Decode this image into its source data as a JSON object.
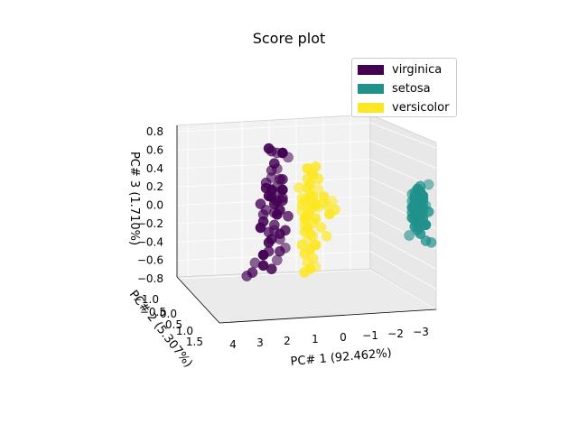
{
  "chart_data": {
    "type": "scatter",
    "projection": "3d",
    "title": "Score plot",
    "xlabel": "PC# 1 (92.462%)",
    "ylabel": "PC# 2 (5.307%)",
    "zlabel": "PC# 3 (1.710%)",
    "xticks": [
      "4",
      "3",
      "2",
      "1",
      "0",
      "−1",
      "−2",
      "−3"
    ],
    "yticks": [
      "−1.0",
      "−0.5",
      "0.0",
      "0.5",
      "1.0",
      "1.5"
    ],
    "zticks": [
      "0.8",
      "0.6",
      "0.4",
      "0.2",
      "0.0",
      "−0.2",
      "−0.4",
      "−0.6",
      "−0.8"
    ],
    "xlim": [
      4.2,
      -3.5
    ],
    "zlim": [
      -0.85,
      0.85
    ],
    "grid": true,
    "legend_position": "top-right",
    "series": [
      {
        "name": "virginica",
        "color": "#440154",
        "points": [
          [
            2.5,
            -0.28
          ],
          [
            2.6,
            0.1
          ],
          [
            2.4,
            0.05
          ],
          [
            2.7,
            -0.52
          ],
          [
            2.5,
            -0.08
          ],
          [
            2.3,
            -0.38
          ],
          [
            2.6,
            0.18
          ],
          [
            2.8,
            0.2
          ],
          [
            2.2,
            0.06
          ],
          [
            2.5,
            -0.22
          ],
          [
            2.3,
            0.16
          ],
          [
            2.1,
            -0.48
          ],
          [
            2.4,
            -0.1
          ],
          [
            2.9,
            -0.18
          ],
          [
            3.0,
            0.02
          ],
          [
            2.6,
            0.62
          ],
          [
            2.4,
            0.6
          ],
          [
            2.2,
            0.6
          ],
          [
            2.7,
            0.65
          ],
          [
            2.5,
            0.48
          ],
          [
            2.3,
            0.3
          ],
          [
            2.6,
            0.4
          ],
          [
            2.4,
            0.42
          ],
          [
            2.2,
            0.18
          ],
          [
            2.3,
            -0.05
          ],
          [
            2.1,
            -0.28
          ],
          [
            2.7,
            -0.3
          ],
          [
            2.8,
            -0.05
          ],
          [
            2.4,
            -0.62
          ],
          [
            2.9,
            -0.68
          ],
          [
            2.6,
            -0.72
          ],
          [
            3.3,
            -0.76
          ],
          [
            3.5,
            -0.8
          ],
          [
            3.2,
            -0.65
          ],
          [
            2.9,
            -0.56
          ],
          [
            2.7,
            -0.42
          ],
          [
            2.3,
            -0.32
          ],
          [
            2.0,
            -0.12
          ],
          [
            2.2,
            0.09
          ],
          [
            2.6,
            0.32
          ],
          [
            3.0,
            -0.25
          ],
          [
            2.5,
            0.02
          ],
          [
            2.2,
            0.3
          ],
          [
            2.8,
            0.26
          ],
          [
            2.4,
            0.22
          ],
          [
            2.0,
            0.55
          ],
          [
            2.7,
            0.11
          ],
          [
            2.6,
            -0.38
          ],
          [
            2.3,
            -0.52
          ],
          [
            2.9,
            -0.1
          ]
        ]
      },
      {
        "name": "setosa",
        "color": "#21918c",
        "points": [
          [
            -2.7,
            0.1
          ],
          [
            -2.8,
            -0.1
          ],
          [
            -2.6,
            0.0
          ],
          [
            -2.7,
            -0.2
          ],
          [
            -2.9,
            0.05
          ],
          [
            -2.5,
            0.15
          ],
          [
            -2.8,
            0.18
          ],
          [
            -2.6,
            0.12
          ],
          [
            -2.9,
            -0.05
          ],
          [
            -2.7,
            -0.08
          ],
          [
            -2.8,
            0.02
          ],
          [
            -2.6,
            -0.15
          ],
          [
            -2.7,
            0.21
          ],
          [
            -2.9,
            0.0
          ],
          [
            -2.5,
            -0.06
          ],
          [
            -2.6,
            0.08
          ],
          [
            -2.8,
            -0.18
          ],
          [
            -2.7,
            0.04
          ],
          [
            -2.6,
            -0.1
          ],
          [
            -2.9,
            -0.18
          ],
          [
            -2.8,
            0.24
          ],
          [
            -2.5,
            0.07
          ],
          [
            -2.7,
            -0.04
          ],
          [
            -2.9,
            0.13
          ],
          [
            -2.6,
            -0.22
          ],
          [
            -2.8,
            -0.08
          ],
          [
            -2.7,
            0.11
          ],
          [
            -2.9,
            0.09
          ],
          [
            -3.1,
            0.26
          ],
          [
            -2.6,
            0.0
          ],
          [
            -2.8,
            -0.3
          ],
          [
            -3.0,
            -0.38
          ],
          [
            -3.2,
            -0.4
          ],
          [
            -2.4,
            -0.32
          ],
          [
            -3.0,
            -0.2
          ],
          [
            -2.5,
            -0.12
          ],
          [
            -3.1,
            -0.05
          ],
          [
            -2.7,
            -0.15
          ],
          [
            -2.6,
            0.17
          ],
          [
            -2.8,
            0.06
          ],
          [
            -2.5,
            0.0
          ],
          [
            -2.9,
            -0.12
          ],
          [
            -2.7,
            -0.26
          ],
          [
            -2.6,
            0.03
          ],
          [
            -2.8,
            0.15
          ],
          [
            -3.0,
            0.02
          ],
          [
            -2.7,
            0.18
          ],
          [
            -2.6,
            -0.04
          ],
          [
            -2.8,
            -0.22
          ],
          [
            -2.9,
            0.1
          ]
        ]
      },
      {
        "name": "versicolor",
        "color": "#fde725",
        "points": [
          [
            1.3,
            0.0
          ],
          [
            1.2,
            -0.05
          ],
          [
            1.4,
            0.05
          ],
          [
            1.1,
            0.1
          ],
          [
            1.3,
            -0.1
          ],
          [
            1.2,
            0.15
          ],
          [
            1.4,
            -0.15
          ],
          [
            1.0,
            0.02
          ],
          [
            1.3,
            0.2
          ],
          [
            1.1,
            -0.2
          ],
          [
            1.5,
            0.08
          ],
          [
            0.9,
            -0.02
          ],
          [
            1.3,
            -0.25
          ],
          [
            1.2,
            0.24
          ],
          [
            1.4,
            -0.3
          ],
          [
            1.1,
            -0.35
          ],
          [
            1.3,
            -0.4
          ],
          [
            1.0,
            -0.45
          ],
          [
            1.2,
            -0.5
          ],
          [
            1.4,
            -0.55
          ],
          [
            1.1,
            -0.6
          ],
          [
            1.3,
            -0.65
          ],
          [
            1.0,
            -0.7
          ],
          [
            1.2,
            -0.72
          ],
          [
            1.4,
            -0.76
          ],
          [
            1.5,
            -0.45
          ],
          [
            0.8,
            -0.25
          ],
          [
            0.6,
            0.0
          ],
          [
            0.4,
            0.05
          ],
          [
            0.5,
            -0.1
          ],
          [
            0.7,
            0.1
          ],
          [
            0.3,
            -0.05
          ],
          [
            0.6,
            -0.35
          ],
          [
            0.7,
            0.03
          ],
          [
            1.1,
            0.35
          ],
          [
            1.3,
            0.42
          ],
          [
            1.0,
            0.44
          ],
          [
            0.9,
            0.3
          ],
          [
            1.6,
            0.2
          ],
          [
            1.5,
            -0.06
          ],
          [
            1.0,
            0.0
          ],
          [
            1.2,
            -0.32
          ],
          [
            1.3,
            -0.12
          ],
          [
            1.1,
            0.06
          ],
          [
            1.4,
            -0.22
          ],
          [
            0.9,
            0.18
          ],
          [
            1.2,
            0.1
          ],
          [
            1.0,
            -0.15
          ],
          [
            1.3,
            0.3
          ],
          [
            1.5,
            0.0
          ]
        ]
      }
    ]
  }
}
